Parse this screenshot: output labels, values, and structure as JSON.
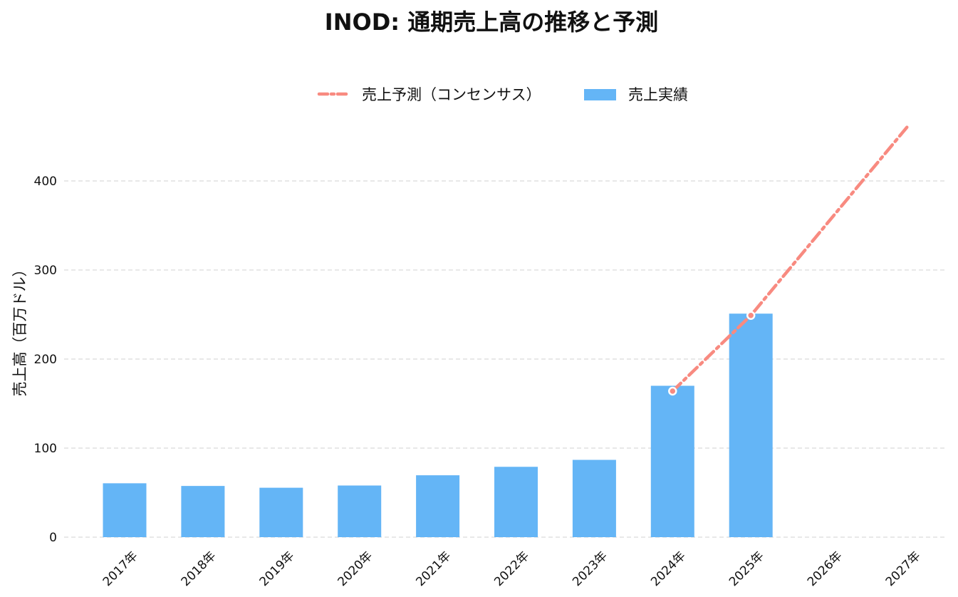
{
  "chart_data": {
    "type": "bar",
    "title": "INOD: 通期売上高の推移と予測",
    "xlabel": "",
    "ylabel": "売上高（百万ドル）",
    "categories": [
      "2017年",
      "2018年",
      "2019年",
      "2020年",
      "2021年",
      "2022年",
      "2023年",
      "2024年",
      "2025年",
      "2026年",
      "2027年"
    ],
    "ylim": [
      0,
      470
    ],
    "yticks": [
      0,
      100,
      200,
      300,
      400
    ],
    "grid": true,
    "legend_position": "top-center",
    "series": [
      {
        "name": "売上実績",
        "type": "bar",
        "color": "#64b5f6",
        "values": [
          60.5,
          57.5,
          55.5,
          58.0,
          69.5,
          79.0,
          86.8,
          170.0,
          251.0,
          null,
          null
        ]
      },
      {
        "name": "売上予測（コンセンサス）",
        "type": "line",
        "style": "dash-dot",
        "color": "#f88a80",
        "values": [
          null,
          null,
          null,
          null,
          null,
          null,
          null,
          164.0,
          249.0,
          null,
          461.0
        ]
      }
    ]
  }
}
